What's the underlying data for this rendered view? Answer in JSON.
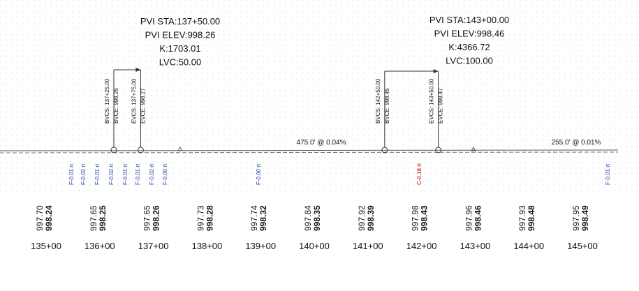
{
  "pvis": [
    {
      "lines": [
        "PVI STA:137+50.00",
        "PVI ELEV:998.26",
        "K:1703.01",
        "LVC:50.00"
      ],
      "bvc_station": "BVCS: 137+25.00",
      "bvc_elevation": "BVCE: 998.26",
      "evc_station": "EVCS: 137+75.00",
      "evc_elevation": "EVCE: 998.27"
    },
    {
      "lines": [
        "PVI STA:143+00.00",
        "PVI ELEV:998.46",
        "K:4366.72",
        "LVC:100.00"
      ],
      "bvc_station": "BVCS: 142+50.00",
      "bvc_elevation": "BVCE: 998.45",
      "evc_station": "EVCS: 143+50.00",
      "evc_elevation": "EVCE: 998.47"
    }
  ],
  "grades": [
    "475.0' @ 0.04%",
    "255.0' @ 0.01%"
  ],
  "cut_fill": [
    "F-0.01 rt",
    "F-0.02 rt",
    "F-0.01 rt",
    "F-0.02 rt",
    "F-0.01 rt",
    "F-0.01 rt",
    "F-0.02 rt",
    "F-0.00 rt",
    "F-0.00 rt",
    "C-0.18 rt",
    "F-0.01 rt"
  ],
  "stations": [
    {
      "label": "135+00",
      "existing": "997.70",
      "design": "998.24"
    },
    {
      "label": "136+00",
      "existing": "997.65",
      "design": "998.25"
    },
    {
      "label": "137+00",
      "existing": "997.65",
      "design": "998.26"
    },
    {
      "label": "138+00",
      "existing": "997.73",
      "design": "998.28"
    },
    {
      "label": "139+00",
      "existing": "997.74",
      "design": "998.32"
    },
    {
      "label": "140+00",
      "existing": "997.84",
      "design": "998.35"
    },
    {
      "label": "141+00",
      "existing": "997.92",
      "design": "998.39"
    },
    {
      "label": "142+00",
      "existing": "997.98",
      "design": "998.43"
    },
    {
      "label": "143+00",
      "existing": "997.96",
      "design": "998.46"
    },
    {
      "label": "144+00",
      "existing": "997.93",
      "design": "998.48"
    },
    {
      "label": "145+00",
      "existing": "997.95",
      "design": "998.49"
    }
  ]
}
